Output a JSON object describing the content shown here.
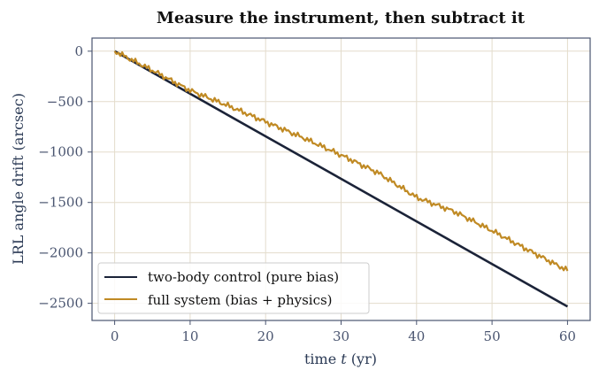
{
  "chart_data": {
    "type": "line",
    "title": "Measure the instrument, then subtract it",
    "xlabel_prefix": "time ",
    "xlabel_var": "t",
    "xlabel_suffix": " (yr)",
    "ylabel": "LRL angle drift (arcsec)",
    "xlim": [
      -3,
      63
    ],
    "ylim": [
      -2670,
      130
    ],
    "xticks": [
      0,
      10,
      20,
      30,
      40,
      50,
      60
    ],
    "yticks": [
      0,
      -500,
      -1000,
      -1500,
      -2000,
      -2500
    ],
    "xtick_labels": [
      "0",
      "10",
      "20",
      "30",
      "40",
      "50",
      "60"
    ],
    "ytick_labels": [
      "0",
      "−500",
      "−1000",
      "−1500",
      "−2000",
      "−2500"
    ],
    "grid": true,
    "legend_position": "lower-left",
    "series": [
      {
        "name": "two-body control (pure bias)",
        "color": "#1b2338",
        "x": [
          0,
          10,
          20,
          30,
          40,
          50,
          60
        ],
        "y": [
          0,
          -422,
          -844,
          -1266,
          -1688,
          -2110,
          -2532
        ]
      },
      {
        "name": "full system (bias + physics)",
        "color": "#c08a24",
        "x": [
          0,
          5,
          10,
          15,
          20,
          25,
          30,
          35,
          40,
          45,
          50,
          55,
          60
        ],
        "y": [
          0,
          -190,
          -390,
          -540,
          -700,
          -860,
          -1030,
          -1210,
          -1450,
          -1590,
          -1780,
          -1980,
          -2175
        ]
      }
    ]
  }
}
